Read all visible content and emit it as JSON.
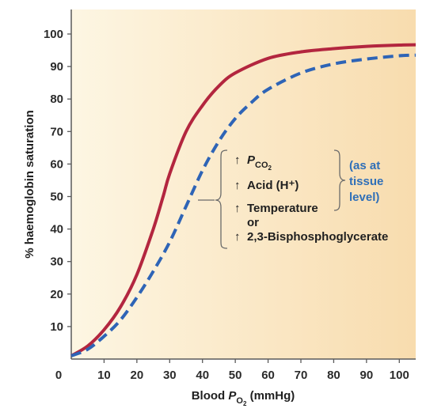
{
  "chart_data": {
    "type": "line",
    "xlabel_prefix": "Blood",
    "xlabel_var": "P",
    "xlabel_sub": "O",
    "xlabel_subsub": "2",
    "xlabel_unit": "(mmHg)",
    "ylabel": "% haemoglobin saturation",
    "xlim": [
      0,
      105
    ],
    "ylim": [
      0,
      100
    ],
    "x_ticks": [
      0,
      10,
      20,
      30,
      40,
      50,
      60,
      70,
      80,
      90,
      100
    ],
    "y_ticks": [
      10,
      20,
      30,
      40,
      50,
      60,
      70,
      80,
      90,
      100
    ],
    "grid": false,
    "series": [
      {
        "style": "solid",
        "color": "#b3263f",
        "x": [
          0,
          5,
          10,
          15,
          20,
          25,
          28,
          30,
          35,
          40,
          45,
          50,
          60,
          70,
          80,
          90,
          100,
          105
        ],
        "y": [
          1,
          4,
          9,
          16,
          26,
          40,
          50,
          57,
          70,
          78,
          84,
          88,
          92.5,
          94.5,
          95.5,
          96.2,
          96.6,
          96.7
        ]
      },
      {
        "style": "dashed",
        "color": "#2e64b6",
        "x": [
          0,
          5,
          10,
          15,
          20,
          25,
          30,
          35,
          40,
          45,
          50,
          55,
          60,
          70,
          80,
          90,
          100,
          105
        ],
        "y": [
          1,
          3,
          7,
          12,
          19,
          27,
          36,
          47,
          58,
          67,
          74,
          79,
          83,
          88,
          90.8,
          92.3,
          93.3,
          93.5
        ]
      }
    ]
  },
  "annotation": {
    "arrow": "↑",
    "items": [
      {
        "label": "P",
        "sub": "CO",
        "subsub": "2"
      },
      {
        "label": "Acid (H⁺)"
      },
      {
        "label": "Temperature"
      },
      {
        "label": "or",
        "no_arrow": true
      },
      {
        "label": "2,3-Bisphosphoglycerate"
      }
    ],
    "note_lines": [
      "(as at",
      "tissue",
      "level)"
    ]
  },
  "colors": {
    "bg_left": "#fdf6e3",
    "bg_right": "#f8dcae",
    "axis": "#5a5a5a",
    "note": "#2f6fb8"
  }
}
